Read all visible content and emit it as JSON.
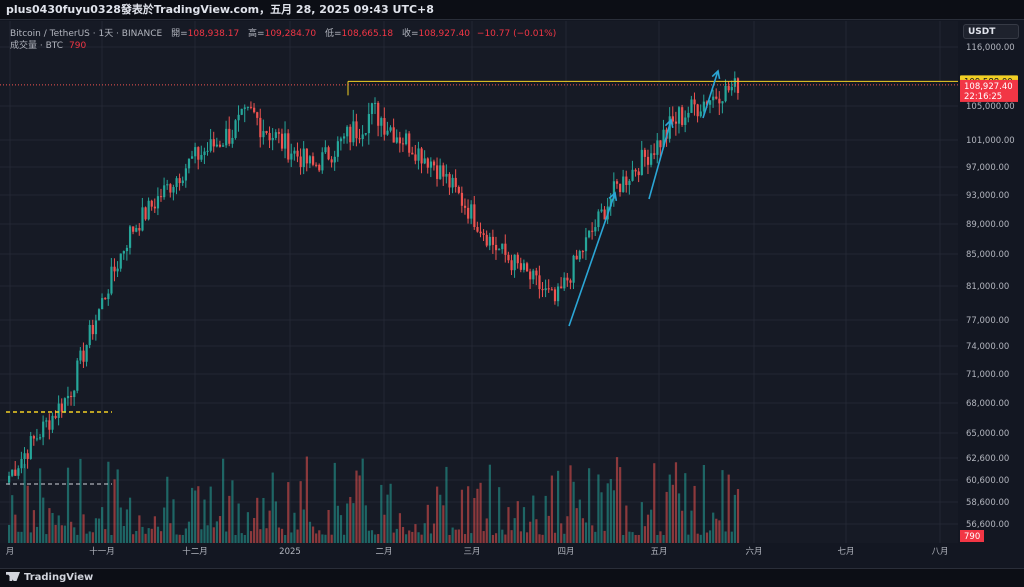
{
  "header": {
    "title": "plus0430fuyu0328發表於TradingView.com，五月 28, 2025 09:43 UTC+8"
  },
  "legend": {
    "symbol": "Bitcoin / TetherUS · 1天 · BINANCE",
    "open_label": "開=",
    "open": "108,938.17",
    "high_label": "高=",
    "high": "109,284.70",
    "low_label": "低=",
    "low": "108,665.18",
    "close_label": "收=",
    "close": "108,927.40",
    "change": "−10.77 (−0.01%)",
    "volume_label": "成交量 · BTC",
    "volume_value": "790"
  },
  "currency": "USDT",
  "footer": {
    "brand": "TradingView"
  },
  "chart_data": {
    "type": "candlestick",
    "title": "Bitcoin / TetherUS · 1天 · BINANCE",
    "y_axis_ticks": [
      "116,000.00",
      "105,000.00",
      "101,000.00",
      "97,000.00",
      "93,000.00",
      "89,000.00",
      "85,000.00",
      "81,000.00",
      "77,000.00",
      "74,000.00",
      "71,000.00",
      "68,000.00",
      "65,000.00",
      "62,600.00",
      "60,600.00",
      "58,600.00",
      "56,600.00"
    ],
    "x_axis_ticks": [
      "月",
      "十一月",
      "十二月",
      "2025",
      "二月",
      "三月",
      "四月",
      "五月",
      "六月",
      "七月",
      "八月"
    ],
    "price_labels": {
      "resistance": "109,588.00",
      "last_price": "108,927.40",
      "countdown": "22:16:25",
      "volume_badge": "790"
    },
    "approx_close_path": [
      {
        "x": "十月 中",
        "close": 61000
      },
      {
        "x": "十一月 初",
        "close": 69000
      },
      {
        "x": "十一月 中",
        "close": 88000
      },
      {
        "x": "十一月 底",
        "close": 98000
      },
      {
        "x": "十二月 中",
        "close": 104000
      },
      {
        "x": "2025 初",
        "close": 97000
      },
      {
        "x": "一月 底",
        "close": 104500
      },
      {
        "x": "二月 中",
        "close": 97500
      },
      {
        "x": "三月 初",
        "close": 86000
      },
      {
        "x": "四月 初",
        "close": 79000
      },
      {
        "x": "四月 底",
        "close": 94000
      },
      {
        "x": "五月 中",
        "close": 103500
      },
      {
        "x": "五月 28",
        "close": 108927
      }
    ],
    "colors": {
      "up": "#26a69a",
      "down": "#ef5350",
      "annotation": "#2ba6d6",
      "resistance": "#f2d024",
      "grid": "#232734"
    }
  }
}
